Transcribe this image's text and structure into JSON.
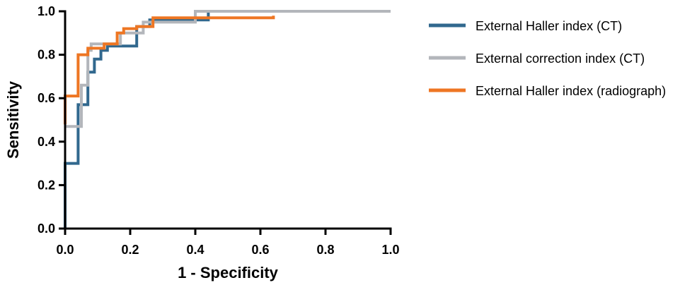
{
  "chart_data": {
    "type": "line",
    "title": "",
    "xlabel": "1 - Specificity",
    "ylabel": "Sensitivity",
    "xlim": [
      0,
      1
    ],
    "ylim": [
      0,
      1
    ],
    "xticks": [
      "0.0",
      "0.2",
      "0.4",
      "0.6",
      "0.8",
      "1.0"
    ],
    "yticks": [
      "0.0",
      "0.2",
      "0.4",
      "0.6",
      "0.8",
      "1.0"
    ],
    "grid": false,
    "legend_position": "right",
    "series": [
      {
        "name": "External Haller index (CT)",
        "color": "#31688e",
        "points": [
          [
            0,
            0
          ],
          [
            0,
            0.3
          ],
          [
            0.04,
            0.3
          ],
          [
            0.04,
            0.57
          ],
          [
            0.07,
            0.57
          ],
          [
            0.07,
            0.72
          ],
          [
            0.09,
            0.72
          ],
          [
            0.09,
            0.78
          ],
          [
            0.11,
            0.78
          ],
          [
            0.11,
            0.82
          ],
          [
            0.13,
            0.82
          ],
          [
            0.13,
            0.84
          ],
          [
            0.22,
            0.84
          ],
          [
            0.22,
            0.93
          ],
          [
            0.26,
            0.93
          ],
          [
            0.26,
            0.96
          ],
          [
            0.44,
            0.96
          ],
          [
            0.44,
            1.0
          ],
          [
            1.0,
            1.0
          ]
        ]
      },
      {
        "name": "External correction index (CT)",
        "color": "#b3b6bb",
        "points": [
          [
            0,
            0.47
          ],
          [
            0.05,
            0.47
          ],
          [
            0.05,
            0.66
          ],
          [
            0.07,
            0.66
          ],
          [
            0.07,
            0.82
          ],
          [
            0.08,
            0.82
          ],
          [
            0.08,
            0.85
          ],
          [
            0.17,
            0.85
          ],
          [
            0.17,
            0.9
          ],
          [
            0.24,
            0.9
          ],
          [
            0.24,
            0.95
          ],
          [
            0.4,
            0.95
          ],
          [
            0.4,
            1.0
          ],
          [
            1.0,
            1.0
          ]
        ]
      },
      {
        "name": "External Haller index (radiograph)",
        "color": "#ee7623",
        "points": [
          [
            0,
            0.48
          ],
          [
            0,
            0.61
          ],
          [
            0.04,
            0.61
          ],
          [
            0.04,
            0.8
          ],
          [
            0.07,
            0.8
          ],
          [
            0.07,
            0.83
          ],
          [
            0.12,
            0.83
          ],
          [
            0.12,
            0.85
          ],
          [
            0.16,
            0.85
          ],
          [
            0.16,
            0.9
          ],
          [
            0.18,
            0.9
          ],
          [
            0.18,
            0.92
          ],
          [
            0.22,
            0.92
          ],
          [
            0.22,
            0.93
          ],
          [
            0.27,
            0.93
          ],
          [
            0.27,
            0.97
          ],
          [
            0.64,
            0.97
          ],
          [
            0.64,
            0.98
          ]
        ]
      }
    ]
  }
}
